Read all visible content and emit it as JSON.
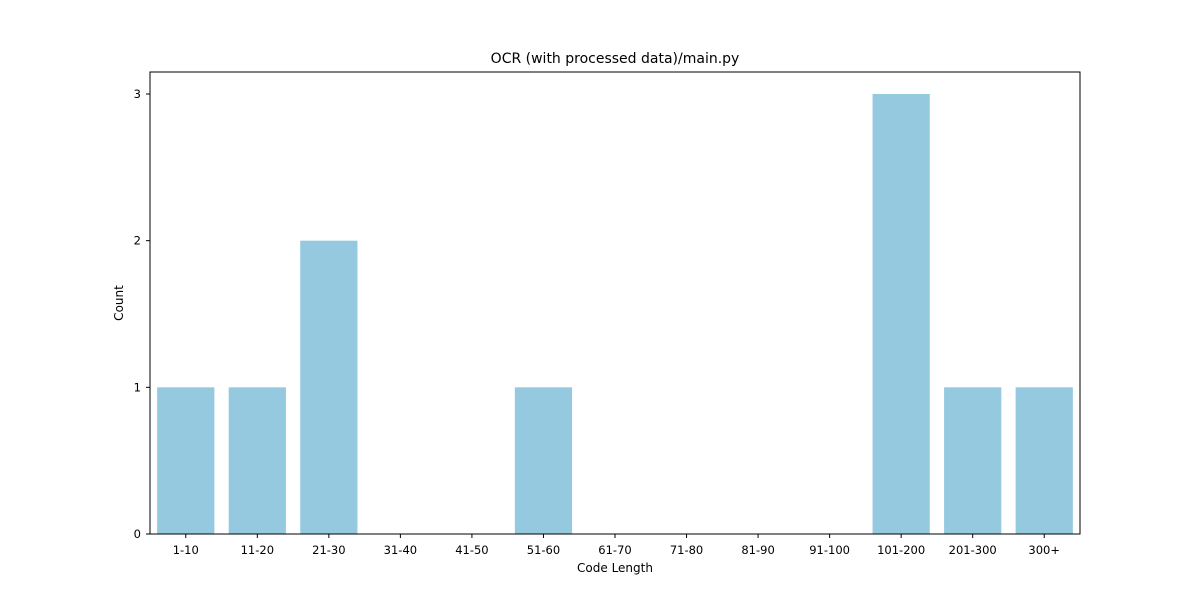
{
  "chart_data": {
    "type": "bar",
    "title": "OCR (with processed data)/main.py",
    "xlabel": "Code Length",
    "ylabel": "Count",
    "categories": [
      "1-10",
      "11-20",
      "21-30",
      "31-40",
      "41-50",
      "51-60",
      "61-70",
      "71-80",
      "81-90",
      "91-100",
      "101-200",
      "201-300",
      "300+"
    ],
    "values": [
      1,
      1,
      2,
      0,
      0,
      1,
      0,
      0,
      0,
      0,
      3,
      1,
      1
    ],
    "yticks": [
      0,
      1,
      2,
      3
    ],
    "ylim": [
      0,
      3.15
    ],
    "grid": false,
    "legend": "none",
    "bar_color": "#95c9df"
  }
}
